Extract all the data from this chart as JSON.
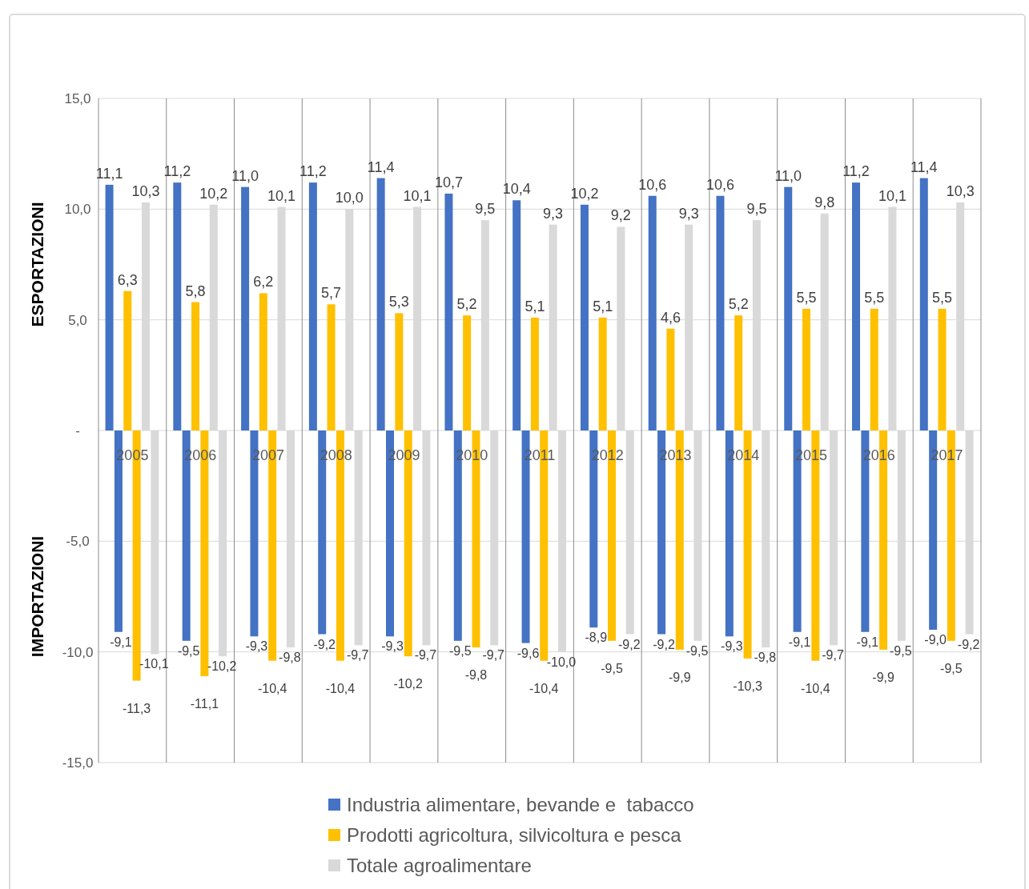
{
  "chart_data": {
    "type": "bar",
    "categories": [
      "2005",
      "2006",
      "2007",
      "2008",
      "2009",
      "2010",
      "2011",
      "2012",
      "2013",
      "2014",
      "2015",
      "2016",
      "2017"
    ],
    "series": [
      {
        "name": "Industria alimentare, bevande e  tabacco",
        "color": "#4472c4",
        "values": [
          11.1,
          11.2,
          11.0,
          11.2,
          11.4,
          10.7,
          10.4,
          10.2,
          10.6,
          10.6,
          11.0,
          11.2,
          11.4
        ],
        "value_labels": [
          "11,1",
          "11,2",
          "11,0",
          "11,2",
          "11,4",
          "10,7",
          "10,4",
          "10,2",
          "10,6",
          "10,6",
          "11,0",
          "11,2",
          "11,4"
        ]
      },
      {
        "color": "#4472c4",
        "values": [
          -9.1,
          -9.5,
          -9.3,
          -9.2,
          -9.3,
          -9.5,
          -9.6,
          -8.9,
          -9.2,
          -9.3,
          -9.1,
          -9.1,
          -9.0
        ],
        "value_labels": [
          "-9,1",
          "-9,5",
          "-9,3",
          "-9,2",
          "-9,3",
          "-9,5",
          "-9,6",
          "-8,9",
          "-9,2",
          "-9,3",
          "-9,1",
          "-9,1",
          "-9,0"
        ]
      },
      {
        "name": "Prodotti agricoltura, silvicoltura e pesca",
        "color": "#ffc000",
        "values": [
          6.3,
          5.8,
          6.2,
          5.7,
          5.3,
          5.2,
          5.1,
          5.1,
          4.6,
          5.2,
          5.5,
          5.5,
          5.5
        ],
        "value_labels": [
          "6,3",
          "5,8",
          "6,2",
          "5,7",
          "5,3",
          "5,2",
          "5,1",
          "5,1",
          "4,6",
          "5,2",
          "5,5",
          "5,5",
          "5,5"
        ]
      },
      {
        "color": "#ffc000",
        "values": [
          -11.3,
          -11.1,
          -10.4,
          -10.4,
          -10.2,
          -9.8,
          -10.4,
          -9.5,
          -9.9,
          -10.3,
          -10.4,
          -9.9,
          -9.5
        ],
        "value_labels": [
          "-11,3",
          "-11,1",
          "-10,4",
          "-10,4",
          "-10,2",
          "-9,8",
          "-10,4",
          "-9,5",
          "-9,9",
          "-10,3",
          "-10,4",
          "-9,9",
          "-9,5"
        ]
      },
      {
        "name": "Totale agroalimentare",
        "color": "#d9d9d9",
        "values": [
          10.3,
          10.2,
          10.1,
          10.0,
          10.1,
          9.5,
          9.3,
          9.2,
          9.3,
          9.5,
          9.8,
          10.1,
          10.3
        ],
        "value_labels": [
          "10,3",
          "10,2",
          "10,1",
          "10,0",
          "10,1",
          "9,5",
          "9,3",
          "9,2",
          "9,3",
          "9,5",
          "9,8",
          "10,1",
          "10,3"
        ]
      },
      {
        "color": "#d9d9d9",
        "values": [
          -10.1,
          -10.2,
          -9.8,
          -9.7,
          -9.7,
          -9.7,
          -10.0,
          -9.2,
          -9.5,
          -9.8,
          -9.7,
          -9.5,
          -9.2
        ],
        "value_labels": [
          "-10,1",
          "-10,2",
          "-9,8",
          "-9,7",
          "-9,7",
          "-9,7",
          "-10,0",
          "-9,2",
          "-9,5",
          "-9,8",
          "-9,7",
          "-9,5",
          "-9,2"
        ]
      }
    ],
    "ylim": [
      -15,
      15
    ],
    "yticks": [
      {
        "value": -15,
        "label": "-15,0"
      },
      {
        "value": -10,
        "label": "-10,0"
      },
      {
        "value": -5,
        "label": "-5,0"
      },
      {
        "value": 0,
        "label": "-"
      },
      {
        "value": 5,
        "label": "5,0"
      },
      {
        "value": 10,
        "label": "10,0"
      },
      {
        "value": 15,
        "label": "15,0"
      }
    ],
    "annotations": [
      "ESPORTAZIONI",
      "IMPORTAZIONI"
    ],
    "grid": true,
    "legend": "bottom"
  }
}
